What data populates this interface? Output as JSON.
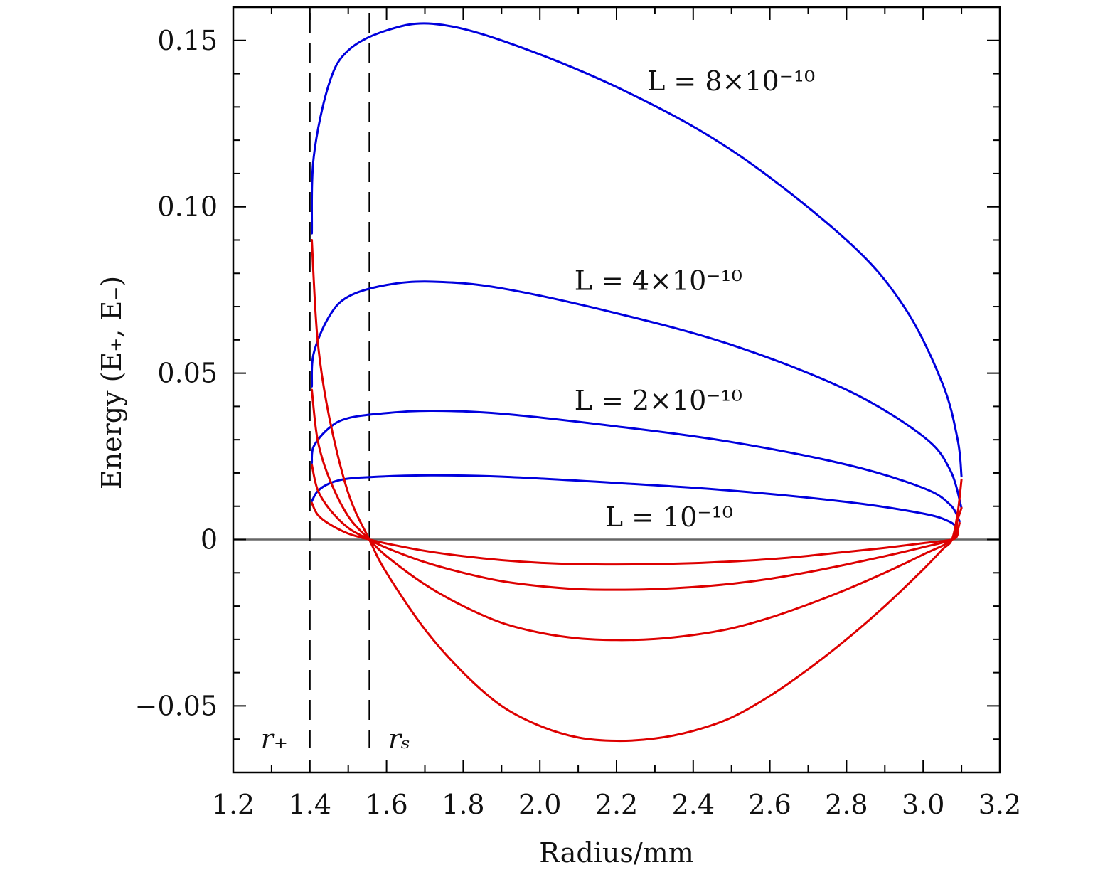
{
  "chart_data": {
    "type": "line",
    "xlabel": "Radius/mm",
    "ylabel": "Energy (E₊, E₋)",
    "xlim": [
      1.2,
      3.2
    ],
    "ylim": [
      -0.07,
      0.16
    ],
    "x_ticks": [
      "1.2",
      "1.4",
      "1.6",
      "1.8",
      "2.0",
      "2.2",
      "2.4",
      "2.6",
      "2.8",
      "3.0",
      "3.2"
    ],
    "y_ticks": [
      "−0.05",
      "0",
      "0.05",
      "0.10",
      "0.15"
    ],
    "vertical_lines": [
      {
        "x": 1.4,
        "label": "r₊"
      },
      {
        "x": 1.555,
        "label": "rₛ"
      }
    ],
    "series": [
      {
        "name": "L = 8×10⁻¹⁰",
        "branch": "E+",
        "color": "#0000dd",
        "points": [
          [
            1.405,
            0.092
          ],
          [
            1.41,
            0.115
          ],
          [
            1.45,
            0.137
          ],
          [
            1.5,
            0.147
          ],
          [
            1.6,
            0.153
          ],
          [
            1.72,
            0.155
          ],
          [
            1.9,
            0.15
          ],
          [
            2.2,
            0.136
          ],
          [
            2.5,
            0.117
          ],
          [
            2.8,
            0.09
          ],
          [
            2.95,
            0.07
          ],
          [
            3.05,
            0.047
          ],
          [
            3.09,
            0.03
          ],
          [
            3.1,
            0.019
          ]
        ]
      },
      {
        "name": "L = 4×10⁻¹⁰",
        "branch": "E+",
        "color": "#0000dd",
        "points": [
          [
            1.405,
            0.046
          ],
          [
            1.41,
            0.056
          ],
          [
            1.45,
            0.067
          ],
          [
            1.5,
            0.073
          ],
          [
            1.6,
            0.0765
          ],
          [
            1.72,
            0.0775
          ],
          [
            1.9,
            0.0755
          ],
          [
            2.2,
            0.068
          ],
          [
            2.5,
            0.0585
          ],
          [
            2.8,
            0.045
          ],
          [
            3.0,
            0.031
          ],
          [
            3.07,
            0.021
          ],
          [
            3.1,
            0.0095
          ]
        ]
      },
      {
        "name": "L = 2×10⁻¹⁰",
        "branch": "E+",
        "color": "#0000dd",
        "points": [
          [
            1.405,
            0.023
          ],
          [
            1.41,
            0.028
          ],
          [
            1.45,
            0.0335
          ],
          [
            1.5,
            0.0365
          ],
          [
            1.6,
            0.038
          ],
          [
            1.72,
            0.0387
          ],
          [
            1.9,
            0.0378
          ],
          [
            2.2,
            0.034
          ],
          [
            2.5,
            0.0293
          ],
          [
            2.8,
            0.0225
          ],
          [
            3.0,
            0.0155
          ],
          [
            3.07,
            0.0105
          ],
          [
            3.095,
            0.0055
          ]
        ]
      },
      {
        "name": "L = 10⁻¹⁰",
        "branch": "E+",
        "color": "#0000dd",
        "points": [
          [
            1.405,
            0.0115
          ],
          [
            1.42,
            0.0145
          ],
          [
            1.45,
            0.0168
          ],
          [
            1.5,
            0.0183
          ],
          [
            1.6,
            0.019
          ],
          [
            1.72,
            0.0193
          ],
          [
            1.9,
            0.0189
          ],
          [
            2.2,
            0.017
          ],
          [
            2.5,
            0.0147
          ],
          [
            2.8,
            0.0113
          ],
          [
            3.0,
            0.0078
          ],
          [
            3.07,
            0.0053
          ],
          [
            3.09,
            0.003
          ]
        ]
      },
      {
        "name": "L = 8×10⁻¹⁰",
        "branch": "E−",
        "color": "#dd0000",
        "points": [
          [
            1.405,
            0.09
          ],
          [
            1.42,
            0.06
          ],
          [
            1.45,
            0.037
          ],
          [
            1.5,
            0.014
          ],
          [
            1.555,
            0.0
          ],
          [
            1.6,
            -0.01
          ],
          [
            1.7,
            -0.027
          ],
          [
            1.8,
            -0.04
          ],
          [
            1.9,
            -0.05
          ],
          [
            2.0,
            -0.056
          ],
          [
            2.1,
            -0.0595
          ],
          [
            2.2,
            -0.0605
          ],
          [
            2.3,
            -0.0598
          ],
          [
            2.4,
            -0.0575
          ],
          [
            2.5,
            -0.0535
          ],
          [
            2.6,
            -0.047
          ],
          [
            2.7,
            -0.039
          ],
          [
            2.8,
            -0.03
          ],
          [
            2.9,
            -0.02
          ],
          [
            3.0,
            -0.009
          ],
          [
            3.05,
            -0.003
          ],
          [
            3.075,
            0.0
          ],
          [
            3.09,
            0.008
          ],
          [
            3.1,
            0.018
          ]
        ]
      },
      {
        "name": "L = 4×10⁻¹⁰",
        "branch": "E−",
        "color": "#dd0000",
        "points": [
          [
            1.405,
            0.045
          ],
          [
            1.42,
            0.03
          ],
          [
            1.45,
            0.0185
          ],
          [
            1.5,
            0.007
          ],
          [
            1.555,
            0.0
          ],
          [
            1.6,
            -0.005
          ],
          [
            1.7,
            -0.0135
          ],
          [
            1.8,
            -0.02
          ],
          [
            1.9,
            -0.025
          ],
          [
            2.0,
            -0.028
          ],
          [
            2.1,
            -0.0297
          ],
          [
            2.2,
            -0.0302
          ],
          [
            2.3,
            -0.0299
          ],
          [
            2.4,
            -0.0287
          ],
          [
            2.5,
            -0.0267
          ],
          [
            2.6,
            -0.0235
          ],
          [
            2.7,
            -0.0195
          ],
          [
            2.8,
            -0.015
          ],
          [
            2.9,
            -0.01
          ],
          [
            3.0,
            -0.0045
          ],
          [
            3.075,
            0.0
          ],
          [
            3.09,
            0.006
          ],
          [
            3.1,
            0.0095
          ]
        ]
      },
      {
        "name": "L = 2×10⁻¹⁰",
        "branch": "E−",
        "color": "#dd0000",
        "points": [
          [
            1.405,
            0.0225
          ],
          [
            1.42,
            0.015
          ],
          [
            1.45,
            0.0093
          ],
          [
            1.5,
            0.0035
          ],
          [
            1.555,
            0.0
          ],
          [
            1.6,
            -0.0025
          ],
          [
            1.7,
            -0.0068
          ],
          [
            1.8,
            -0.01
          ],
          [
            1.9,
            -0.0125
          ],
          [
            2.0,
            -0.014
          ],
          [
            2.1,
            -0.0149
          ],
          [
            2.2,
            -0.0151
          ],
          [
            2.3,
            -0.0149
          ],
          [
            2.4,
            -0.0143
          ],
          [
            2.5,
            -0.0133
          ],
          [
            2.6,
            -0.0118
          ],
          [
            2.7,
            -0.0098
          ],
          [
            2.8,
            -0.0075
          ],
          [
            2.9,
            -0.005
          ],
          [
            3.0,
            -0.0023
          ],
          [
            3.075,
            0.0
          ],
          [
            3.09,
            0.003
          ],
          [
            3.095,
            0.005
          ]
        ]
      },
      {
        "name": "L = 10⁻¹⁰",
        "branch": "E−",
        "color": "#dd0000",
        "points": [
          [
            1.405,
            0.011
          ],
          [
            1.42,
            0.0075
          ],
          [
            1.45,
            0.0047
          ],
          [
            1.5,
            0.0018
          ],
          [
            1.555,
            0.0
          ],
          [
            1.6,
            -0.0012
          ],
          [
            1.7,
            -0.0034
          ],
          [
            1.8,
            -0.005
          ],
          [
            1.9,
            -0.0062
          ],
          [
            2.0,
            -0.007
          ],
          [
            2.1,
            -0.0074
          ],
          [
            2.2,
            -0.0075
          ],
          [
            2.3,
            -0.0074
          ],
          [
            2.4,
            -0.0071
          ],
          [
            2.5,
            -0.0066
          ],
          [
            2.6,
            -0.0059
          ],
          [
            2.7,
            -0.0049
          ],
          [
            2.8,
            -0.0037
          ],
          [
            2.9,
            -0.0025
          ],
          [
            3.0,
            -0.0011
          ],
          [
            3.075,
            0.0
          ],
          [
            3.09,
            0.0015
          ],
          [
            3.09,
            0.0025
          ]
        ]
      }
    ],
    "annotations": [
      {
        "text": "L = 8×10⁻¹⁰",
        "at": [
          2.28,
          0.135
        ]
      },
      {
        "text": "L = 4×10⁻¹⁰",
        "at": [
          2.09,
          0.075
        ]
      },
      {
        "text": "L = 2×10⁻¹⁰",
        "at": [
          2.09,
          0.039
        ]
      },
      {
        "text": "L = 10⁻¹⁰",
        "at": [
          2.17,
          0.004
        ]
      }
    ],
    "zero_line": {
      "y": 0,
      "color": "#666666"
    },
    "grid": false
  }
}
